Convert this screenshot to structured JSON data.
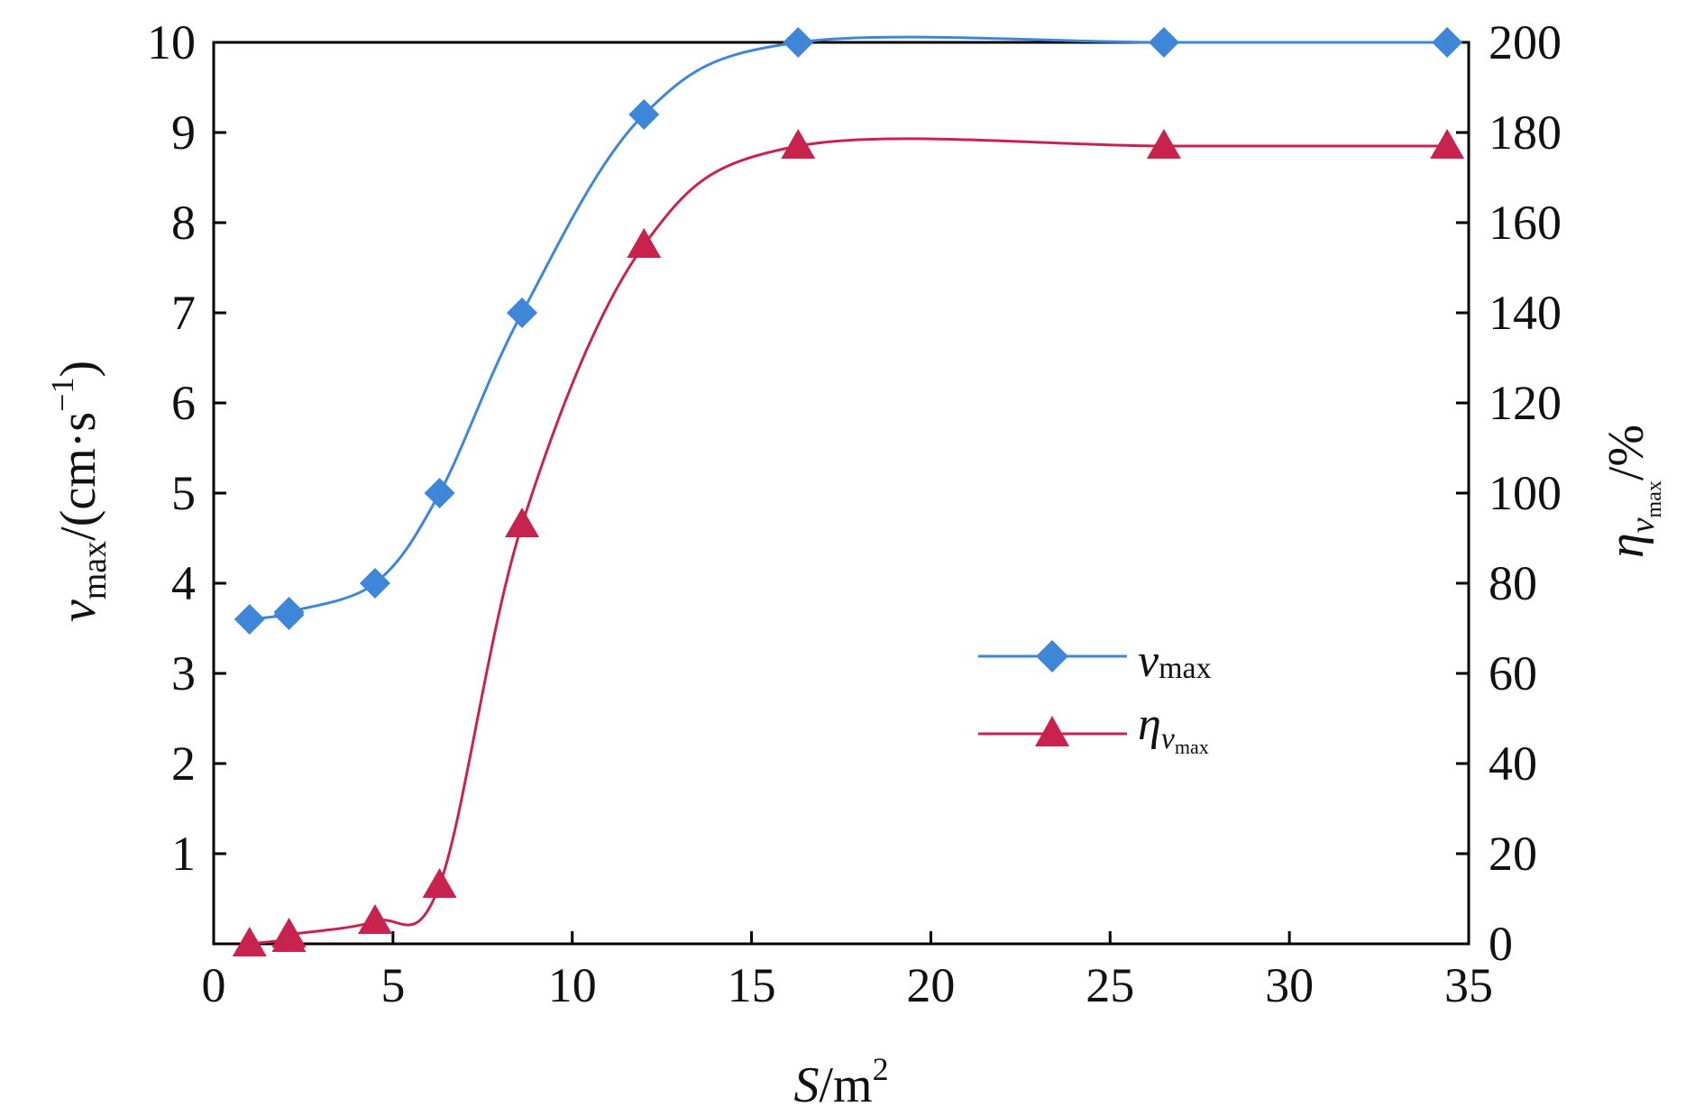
{
  "chart_data": {
    "type": "line",
    "xlabel": {
      "main": "S",
      "suffix": "/m",
      "sup": "2"
    },
    "ylabel_left": {
      "main": "v",
      "sub": "max",
      "suffix": "/(cm·s",
      "sup": "−1",
      "close": ")"
    },
    "ylabel_right": {
      "main": "η",
      "sub": "v",
      "subsub": "max",
      "suffix": "/%"
    },
    "xlim": [
      0,
      35
    ],
    "ylim_left": [
      0,
      10
    ],
    "ylim_right": [
      0,
      200
    ],
    "x_ticks": [
      "0",
      "5",
      "10",
      "15",
      "20",
      "25",
      "30",
      "35"
    ],
    "y_left_ticks": [
      "1",
      "2",
      "3",
      "4",
      "5",
      "6",
      "7",
      "8",
      "9",
      "10"
    ],
    "y_right_ticks": [
      "0",
      "20",
      "40",
      "60",
      "80",
      "100",
      "120",
      "140",
      "160",
      "180",
      "200"
    ],
    "grid": false,
    "legend_position": "center-right",
    "series": [
      {
        "name": "v_max",
        "legend_main": "v",
        "legend_sub": "max",
        "axis": "left",
        "marker": "diamond",
        "color": "#3e87d8",
        "x": [
          1.0,
          2.1,
          2.1,
          4.5,
          6.3,
          8.6,
          12.0,
          16.3,
          26.5,
          34.4
        ],
        "y": [
          3.6,
          3.65,
          3.68,
          4.0,
          5.0,
          7.0,
          9.2,
          10.0,
          10.0,
          10.0
        ]
      },
      {
        "name": "η_vmax",
        "legend_main": "η",
        "legend_sub": "v",
        "legend_subsub": "max",
        "axis": "right",
        "marker": "triangle",
        "color": "#c8234e",
        "x": [
          1.0,
          2.1,
          2.1,
          4.5,
          6.3,
          8.6,
          12.0,
          16.3,
          26.5,
          34.4
        ],
        "y": [
          0,
          1,
          2,
          5,
          13,
          93,
          155,
          177,
          177,
          177
        ]
      }
    ]
  }
}
